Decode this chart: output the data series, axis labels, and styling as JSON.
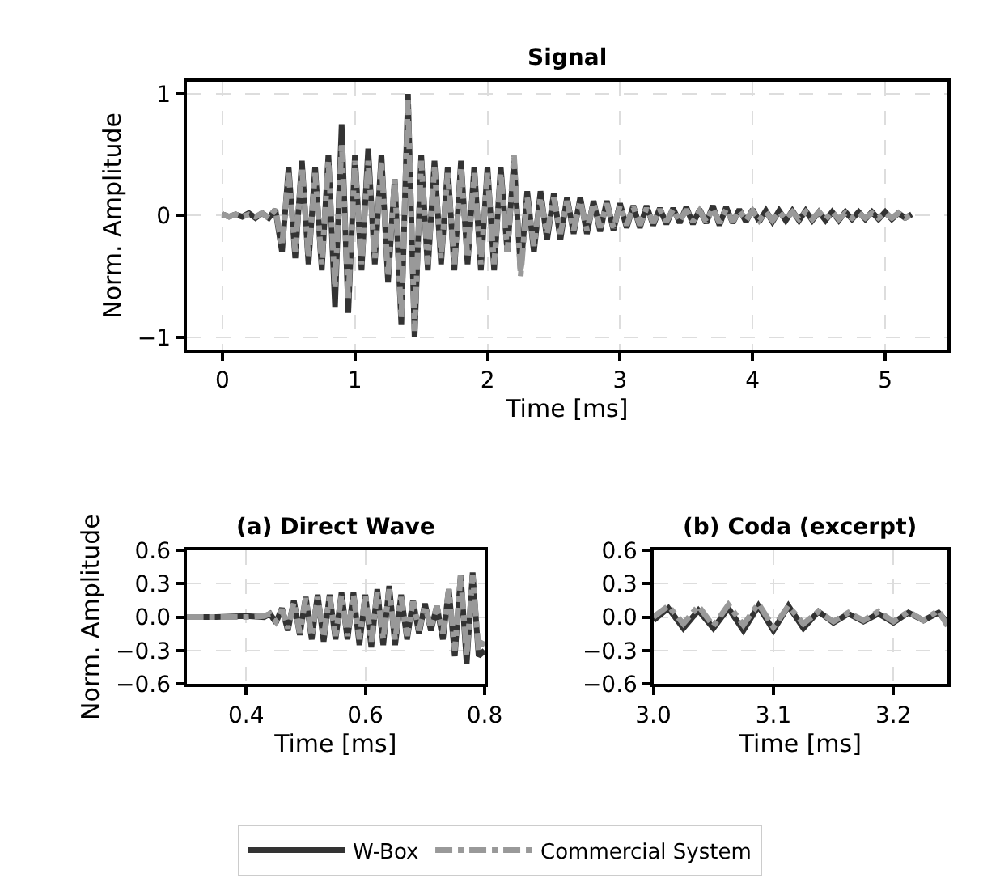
{
  "chart_data": [
    {
      "type": "line",
      "title": "Signal",
      "xlabel": "Time [ms]",
      "ylabel": "Norm. Amplitude",
      "legend": "bottom",
      "grid": true,
      "x": [
        0,
        0.05,
        0.1,
        0.15,
        0.2,
        0.25,
        0.3,
        0.35,
        0.4,
        0.45,
        0.5,
        0.55,
        0.6,
        0.65,
        0.7,
        0.75,
        0.8,
        0.85,
        0.9,
        0.95,
        1.0,
        1.05,
        1.1,
        1.15,
        1.2,
        1.25,
        1.3,
        1.35,
        1.4,
        1.45,
        1.5,
        1.55,
        1.6,
        1.65,
        1.7,
        1.75,
        1.8,
        1.85,
        1.9,
        1.95,
        2.0,
        2.05,
        2.1,
        2.15,
        2.2,
        2.25,
        2.3,
        2.35,
        2.4,
        2.45,
        2.5,
        2.55,
        2.6,
        2.65,
        2.7,
        2.75,
        2.8,
        2.85,
        2.9,
        2.95,
        3.0,
        3.05,
        3.1,
        3.15,
        3.2,
        3.25,
        3.3,
        3.35,
        3.4,
        3.45,
        3.5,
        3.55,
        3.6,
        3.65,
        3.7,
        3.75,
        3.8,
        3.85,
        3.9,
        3.95,
        4.0,
        4.05,
        4.1,
        4.15,
        4.2,
        4.25,
        4.3,
        4.35,
        4.4,
        4.45,
        4.5,
        4.55,
        4.6,
        4.65,
        4.7,
        4.75,
        4.8,
        4.85,
        4.9,
        4.95,
        5.0,
        5.05,
        5.1,
        5.15,
        5.2
      ],
      "series": [
        {
          "name": "W-Box",
          "color": "#333333",
          "line_style": "solid",
          "values": [
            0.01,
            -0.01,
            0.01,
            -0.01,
            0.02,
            -0.02,
            0.02,
            -0.02,
            0.05,
            -0.3,
            0.4,
            -0.35,
            0.45,
            -0.4,
            0.4,
            -0.45,
            0.5,
            -0.75,
            0.75,
            -0.8,
            0.5,
            -0.45,
            0.55,
            -0.4,
            0.5,
            -0.55,
            0.3,
            -0.9,
            1.0,
            -1.0,
            0.5,
            -0.45,
            0.45,
            -0.4,
            0.4,
            -0.45,
            0.45,
            -0.4,
            0.4,
            -0.45,
            0.4,
            -0.45,
            0.4,
            -0.3,
            0.45,
            -0.45,
            0.2,
            -0.3,
            0.2,
            -0.2,
            0.18,
            -0.2,
            0.15,
            -0.15,
            0.15,
            -0.15,
            0.12,
            -0.13,
            0.12,
            -0.12,
            0.1,
            -0.1,
            0.08,
            -0.1,
            0.08,
            -0.08,
            0.06,
            -0.07,
            0.06,
            -0.06,
            0.07,
            -0.07,
            0.05,
            -0.06,
            0.08,
            -0.08,
            0.07,
            -0.06,
            0.05,
            -0.05,
            0.05,
            -0.05,
            0.04,
            -0.05,
            0.04,
            -0.04,
            0.04,
            -0.04,
            0.04,
            -0.04,
            0.03,
            -0.04,
            0.03,
            -0.04,
            0.03,
            -0.03,
            0.03,
            -0.03,
            0.03,
            -0.03,
            0.03,
            -0.03,
            0.02,
            -0.02,
            0.01
          ]
        },
        {
          "name": "Commercial System",
          "color": "#999999",
          "line_style": "dashdot",
          "values": [
            0.01,
            -0.01,
            0.01,
            -0.01,
            0.01,
            -0.01,
            0.02,
            -0.02,
            0.05,
            -0.25,
            0.35,
            -0.3,
            0.4,
            -0.35,
            0.35,
            -0.4,
            0.45,
            -0.6,
            0.6,
            -0.7,
            0.45,
            -0.4,
            0.45,
            -0.35,
            0.45,
            -0.5,
            0.3,
            -0.85,
            0.95,
            -0.95,
            0.45,
            -0.4,
            0.4,
            -0.35,
            0.35,
            -0.4,
            0.4,
            -0.35,
            0.35,
            -0.4,
            0.35,
            -0.4,
            0.35,
            -0.3,
            0.5,
            -0.5,
            0.15,
            -0.25,
            0.15,
            -0.15,
            0.15,
            -0.15,
            0.12,
            -0.12,
            0.12,
            -0.12,
            0.1,
            -0.1,
            0.1,
            -0.1,
            0.08,
            -0.08,
            0.07,
            -0.08,
            0.06,
            -0.06,
            0.05,
            -0.05,
            0.05,
            -0.05,
            0.05,
            -0.05,
            0.04,
            -0.05,
            0.06,
            -0.06,
            0.05,
            -0.05,
            0.04,
            -0.04,
            0.04,
            -0.04,
            0.03,
            -0.04,
            0.03,
            -0.03,
            0.03,
            -0.03,
            0.03,
            -0.03,
            0.03,
            -0.03,
            0.03,
            -0.03,
            0.02,
            -0.02,
            0.02,
            -0.02,
            0.02,
            -0.02,
            0.02,
            -0.02,
            0.02,
            -0.02,
            0.01
          ]
        }
      ],
      "xlim": [
        -0.27,
        5.47
      ],
      "ylim": [
        -1.1,
        1.1
      ],
      "xticks": [
        0,
        1,
        2,
        3,
        4,
        5
      ],
      "yticks": [
        {
          "value": -1,
          "label": "−1"
        },
        0,
        1
      ]
    },
    {
      "type": "line",
      "title": "(a) Direct Wave",
      "xlabel": "Time [ms]",
      "ylabel": "Norm. Amplitude",
      "grid": true,
      "x": [
        0.3,
        0.35,
        0.4,
        0.43,
        0.44,
        0.45,
        0.46,
        0.47,
        0.48,
        0.49,
        0.5,
        0.51,
        0.52,
        0.53,
        0.54,
        0.55,
        0.56,
        0.57,
        0.58,
        0.59,
        0.6,
        0.61,
        0.62,
        0.63,
        0.64,
        0.65,
        0.66,
        0.67,
        0.68,
        0.69,
        0.7,
        0.71,
        0.72,
        0.73,
        0.74,
        0.75,
        0.76,
        0.77,
        0.78,
        0.79,
        0.8
      ],
      "series": [
        {
          "color": "#333333",
          "line_style": "solid",
          "values": [
            0,
            0,
            0.01,
            0,
            0.03,
            -0.05,
            0.08,
            -0.12,
            0.15,
            -0.16,
            0.18,
            -0.2,
            0.2,
            -0.22,
            0.2,
            -0.2,
            0.22,
            -0.2,
            0.22,
            -0.25,
            0.2,
            -0.27,
            0.25,
            -0.25,
            0.28,
            -0.25,
            0.2,
            -0.2,
            0.15,
            -0.15,
            0.12,
            -0.12,
            0.1,
            -0.2,
            0.25,
            -0.35,
            0.38,
            -0.42,
            0.4,
            -0.35,
            -0.3
          ]
        },
        {
          "color": "#999999",
          "line_style": "dashdot",
          "values": [
            0,
            0,
            0,
            0.01,
            0.03,
            -0.04,
            0.07,
            -0.1,
            0.13,
            -0.14,
            0.17,
            -0.17,
            0.18,
            -0.18,
            0.18,
            -0.17,
            0.2,
            -0.17,
            0.2,
            -0.2,
            0.2,
            -0.22,
            0.22,
            -0.2,
            0.25,
            -0.2,
            0.18,
            -0.17,
            0.14,
            -0.12,
            0.1,
            -0.1,
            0.1,
            -0.15,
            0.25,
            -0.3,
            0.38,
            -0.35,
            0.38,
            -0.3,
            -0.2
          ]
        }
      ],
      "xlim": [
        0.3,
        0.8
      ],
      "ylim": [
        -0.6,
        0.6
      ],
      "xticks": [
        0.4,
        0.6,
        0.8
      ],
      "yticks": [
        {
          "value": -0.6,
          "label": "−0.6"
        },
        {
          "value": -0.3,
          "label": "−0.3"
        },
        {
          "value": 0,
          "label": "0.0"
        },
        0.3,
        0.6
      ]
    },
    {
      "type": "line",
      "title": "(b) Coda (excerpt)",
      "xlabel": "Time [ms]",
      "grid": true,
      "x": [
        3.0,
        3.0125,
        3.025,
        3.0375,
        3.05,
        3.0625,
        3.075,
        3.0875,
        3.1,
        3.1125,
        3.125,
        3.1375,
        3.15,
        3.1625,
        3.175,
        3.1875,
        3.2,
        3.2125,
        3.225,
        3.2375,
        3.245
      ],
      "series": [
        {
          "color": "#333333",
          "line_style": "solid",
          "values": [
            -0.03,
            0.08,
            -0.1,
            0.06,
            -0.1,
            0.08,
            -0.12,
            0.1,
            -0.12,
            0.1,
            -0.1,
            0.05,
            -0.05,
            0.03,
            -0.04,
            0.03,
            -0.05,
            0.04,
            -0.03,
            0.04,
            -0.05
          ]
        },
        {
          "color": "#999999",
          "line_style": "dashdot",
          "values": [
            0.0,
            0.1,
            -0.06,
            0.1,
            -0.08,
            0.11,
            -0.07,
            0.12,
            -0.09,
            0.1,
            -0.06,
            0.05,
            -0.04,
            0.04,
            -0.03,
            0.05,
            -0.04,
            0.05,
            -0.03,
            0.06,
            -0.08
          ]
        }
      ],
      "xlim": [
        3.0,
        3.245
      ],
      "ylim": [
        -0.6,
        0.6
      ],
      "xticks": [
        {
          "value": 3.0,
          "label": "3.0"
        },
        3.1,
        3.2
      ],
      "yticks": [
        {
          "value": -0.6,
          "label": "−0.6"
        },
        {
          "value": -0.3,
          "label": "−0.3"
        },
        {
          "value": 0,
          "label": "0.0"
        },
        0.3,
        0.6
      ]
    }
  ]
}
